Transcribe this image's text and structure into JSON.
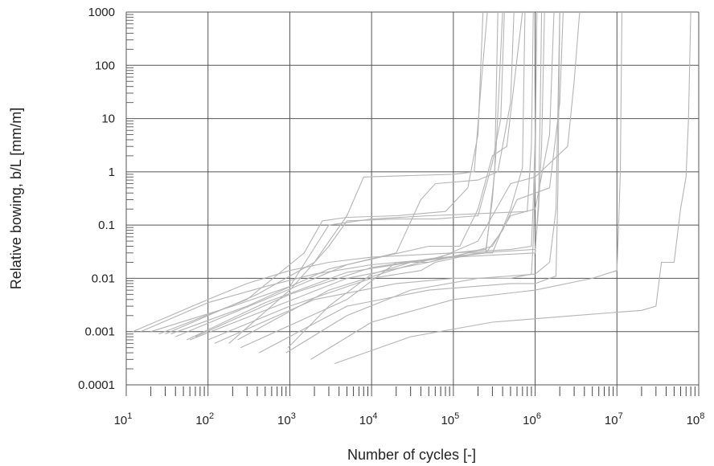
{
  "chart_data": {
    "type": "line",
    "xlabel": "Number of cycles [-]",
    "ylabel": "Relative bowing, b/L [mm/m]",
    "x_scale": "log",
    "y_scale": "log",
    "xlim": [
      10,
      100000000
    ],
    "ylim": [
      0.0001,
      1000
    ],
    "x_ticks": [
      {
        "value": 10,
        "base": "10",
        "exp": "1"
      },
      {
        "value": 100,
        "base": "10",
        "exp": "2"
      },
      {
        "value": 1000,
        "base": "10",
        "exp": "3"
      },
      {
        "value": 10000,
        "base": "10",
        "exp": "4"
      },
      {
        "value": 100000,
        "base": "10",
        "exp": "5"
      },
      {
        "value": 1000000,
        "base": "10",
        "exp": "6"
      },
      {
        "value": 10000000,
        "base": "10",
        "exp": "7"
      },
      {
        "value": 100000000,
        "base": "10",
        "exp": "8"
      }
    ],
    "y_ticks": [
      {
        "value": 1000,
        "label": "1000"
      },
      {
        "value": 100,
        "label": "100"
      },
      {
        "value": 10,
        "label": "10"
      },
      {
        "value": 1,
        "label": "1"
      },
      {
        "value": 0.1,
        "label": "0.1"
      },
      {
        "value": 0.01,
        "label": "0.01"
      },
      {
        "value": 0.001,
        "label": "0.001"
      },
      {
        "value": 0.0001,
        "label": "0.0001"
      }
    ],
    "grid": true,
    "series_color": "#b4b4b4",
    "series": [
      {
        "points": [
          [
            12,
            0.001
          ],
          [
            100,
            0.004
          ],
          [
            300,
            0.008
          ],
          [
            1000,
            0.014
          ],
          [
            3000,
            0.02
          ],
          [
            10000,
            0.025
          ],
          [
            100000,
            0.03
          ],
          [
            250000,
            0.035
          ],
          [
            300000,
            0.3
          ],
          [
            330000,
            2
          ],
          [
            360000,
            30
          ],
          [
            400000,
            1000
          ]
        ]
      },
      {
        "points": [
          [
            15,
            0.001
          ],
          [
            100,
            0.0035
          ],
          [
            500,
            0.007
          ],
          [
            2000,
            0.012
          ],
          [
            10000,
            0.018
          ],
          [
            100000,
            0.025
          ],
          [
            1000000,
            0.03
          ],
          [
            1100000,
            0.3
          ],
          [
            1150000,
            10
          ],
          [
            1200000,
            1000
          ]
        ]
      },
      {
        "points": [
          [
            20,
            0.001
          ],
          [
            200,
            0.003
          ],
          [
            1000,
            0.007
          ],
          [
            3000,
            0.1
          ],
          [
            10000,
            0.13
          ],
          [
            50000,
            0.15
          ],
          [
            150000,
            0.16
          ],
          [
            800000,
            0.18
          ],
          [
            900000,
            3
          ],
          [
            950000,
            1000
          ]
        ]
      },
      {
        "points": [
          [
            25,
            0.0009
          ],
          [
            300,
            0.004
          ],
          [
            1500,
            0.03
          ],
          [
            2500,
            0.12
          ],
          [
            5000,
            0.14
          ],
          [
            20000,
            0.15
          ],
          [
            80000,
            0.18
          ],
          [
            150000,
            0.5
          ],
          [
            200000,
            5
          ],
          [
            230000,
            1000
          ]
        ]
      },
      {
        "points": [
          [
            30,
            0.0009
          ],
          [
            400,
            0.005
          ],
          [
            2000,
            0.02
          ],
          [
            5000,
            0.15
          ],
          [
            8000,
            0.8
          ],
          [
            30000,
            0.85
          ],
          [
            100000,
            0.9
          ],
          [
            180000,
            1
          ],
          [
            220000,
            50
          ],
          [
            260000,
            1000
          ]
        ]
      },
      {
        "points": [
          [
            35,
            0.0009
          ],
          [
            300,
            0.003
          ],
          [
            3000,
            0.015
          ],
          [
            20000,
            0.03
          ],
          [
            40000,
            0.3
          ],
          [
            60000,
            0.6
          ],
          [
            200000,
            0.7
          ],
          [
            350000,
            1
          ],
          [
            500000,
            20
          ],
          [
            550000,
            1000
          ]
        ]
      },
      {
        "points": [
          [
            40,
            0.0008
          ],
          [
            500,
            0.004
          ],
          [
            5000,
            0.018
          ],
          [
            50000,
            0.04
          ],
          [
            120000,
            0.04
          ],
          [
            200000,
            0.2
          ],
          [
            300000,
            2
          ],
          [
            450000,
            3
          ],
          [
            700000,
            1000
          ]
        ]
      },
      {
        "points": [
          [
            55,
            0.0007
          ],
          [
            500,
            0.0035
          ],
          [
            5000,
            0.013
          ],
          [
            30000,
            0.02
          ],
          [
            80000,
            0.025
          ],
          [
            250000,
            0.03
          ],
          [
            400000,
            0.08
          ],
          [
            600000,
            0.3
          ],
          [
            1500000,
            0.5
          ],
          [
            2000000,
            20
          ],
          [
            2200000,
            1000
          ]
        ]
      },
      {
        "points": [
          [
            60,
            0.0007
          ],
          [
            500,
            0.0025
          ],
          [
            5000,
            0.01
          ],
          [
            50000,
            0.02
          ],
          [
            150000,
            0.03
          ],
          [
            300000,
            0.04
          ],
          [
            500000,
            0.15
          ],
          [
            1000000,
            0.2
          ],
          [
            1500000,
            5
          ],
          [
            1700000,
            1000
          ]
        ]
      },
      {
        "points": [
          [
            70,
            0.0008
          ],
          [
            1000,
            0.005
          ],
          [
            10000,
            0.016
          ],
          [
            70000,
            0.025
          ],
          [
            200000,
            0.05
          ],
          [
            500000,
            0.6
          ],
          [
            1000000,
            0.8
          ],
          [
            2500000,
            3
          ],
          [
            3000000,
            50
          ],
          [
            3500000,
            1000
          ]
        ]
      },
      {
        "points": [
          [
            100,
            0.0007
          ],
          [
            1000,
            0.003
          ],
          [
            10000,
            0.01
          ],
          [
            40000,
            0.014
          ],
          [
            60000,
            0.02
          ],
          [
            200000,
            0.03
          ],
          [
            1000000,
            0.035
          ],
          [
            1100000,
            0.2
          ],
          [
            1200000,
            3
          ],
          [
            1300000,
            1000
          ]
        ]
      },
      {
        "points": [
          [
            120,
            0.0006
          ],
          [
            2000,
            0.004
          ],
          [
            20000,
            0.008
          ],
          [
            100000,
            0.01
          ],
          [
            500000,
            0.01
          ],
          [
            900000,
            0.012
          ],
          [
            950000,
            0.05
          ],
          [
            1000000,
            1
          ],
          [
            1050000,
            1000
          ]
        ]
      },
      {
        "points": [
          [
            230,
            0.0007
          ],
          [
            3000,
            0.006
          ],
          [
            20000,
            0.015
          ],
          [
            100000,
            0.03
          ],
          [
            500000,
            0.035
          ],
          [
            900000,
            0.04
          ],
          [
            950000,
            0.3
          ],
          [
            1000000,
            5
          ],
          [
            1050000,
            1000
          ]
        ]
      },
      {
        "points": [
          [
            180,
            0.0006
          ],
          [
            1000,
            0.006
          ],
          [
            3000,
            0.04
          ],
          [
            5000,
            0.12
          ],
          [
            20000,
            0.13
          ],
          [
            60000,
            0.13
          ],
          [
            200000,
            0.15
          ],
          [
            300000,
            1.5
          ],
          [
            380000,
            10
          ],
          [
            420000,
            1000
          ]
        ]
      },
      {
        "points": [
          [
            420,
            0.0004
          ],
          [
            5000,
            0.003
          ],
          [
            50000,
            0.006
          ],
          [
            500000,
            0.008
          ],
          [
            1000000,
            0.008
          ],
          [
            1500000,
            0.01
          ],
          [
            1800000,
            0.011
          ],
          [
            1900000,
            0.5
          ],
          [
            2000000,
            1000
          ]
        ]
      },
      {
        "points": [
          [
            250,
            0.0005
          ],
          [
            5000,
            0.004
          ],
          [
            20000,
            0.02
          ],
          [
            50000,
            0.02
          ],
          [
            150000,
            0.03
          ],
          [
            300000,
            0.03
          ],
          [
            500000,
            0.2
          ],
          [
            700000,
            1.2
          ],
          [
            750000,
            1000
          ]
        ]
      },
      {
        "points": [
          [
            950,
            0.0005
          ],
          [
            3000,
            0.003
          ],
          [
            10000,
            0.012
          ],
          [
            30000,
            0.02
          ],
          [
            100000,
            0.025
          ],
          [
            250000,
            0.03
          ],
          [
            280000,
            0.15
          ],
          [
            320000,
            1
          ],
          [
            350000,
            1000
          ]
        ]
      },
      {
        "points": [
          [
            1800,
            0.0003
          ],
          [
            10000,
            0.0015
          ],
          [
            100000,
            0.004
          ],
          [
            1000000,
            0.006
          ],
          [
            5000000,
            0.01
          ],
          [
            10000000,
            0.014
          ],
          [
            10500000,
            0.1
          ],
          [
            11000000,
            1
          ],
          [
            11500000,
            1000
          ]
        ]
      },
      {
        "points": [
          [
            3500,
            0.00025
          ],
          [
            30000,
            0.0008
          ],
          [
            300000,
            0.0015
          ],
          [
            3000000,
            0.002
          ],
          [
            20000000,
            0.0025
          ],
          [
            30000000,
            0.003
          ],
          [
            35000000,
            0.02
          ],
          [
            50000000,
            0.02
          ],
          [
            60000000,
            0.2
          ],
          [
            70000000,
            0.8
          ],
          [
            75000000,
            10
          ],
          [
            80000000,
            1000
          ]
        ]
      },
      {
        "points": [
          [
            900,
            0.0004
          ],
          [
            5000,
            0.002
          ],
          [
            30000,
            0.006
          ],
          [
            200000,
            0.01
          ],
          [
            1000000,
            0.012
          ],
          [
            1500000,
            0.02
          ],
          [
            1800000,
            0.2
          ],
          [
            2000000,
            1000
          ]
        ]
      }
    ]
  }
}
